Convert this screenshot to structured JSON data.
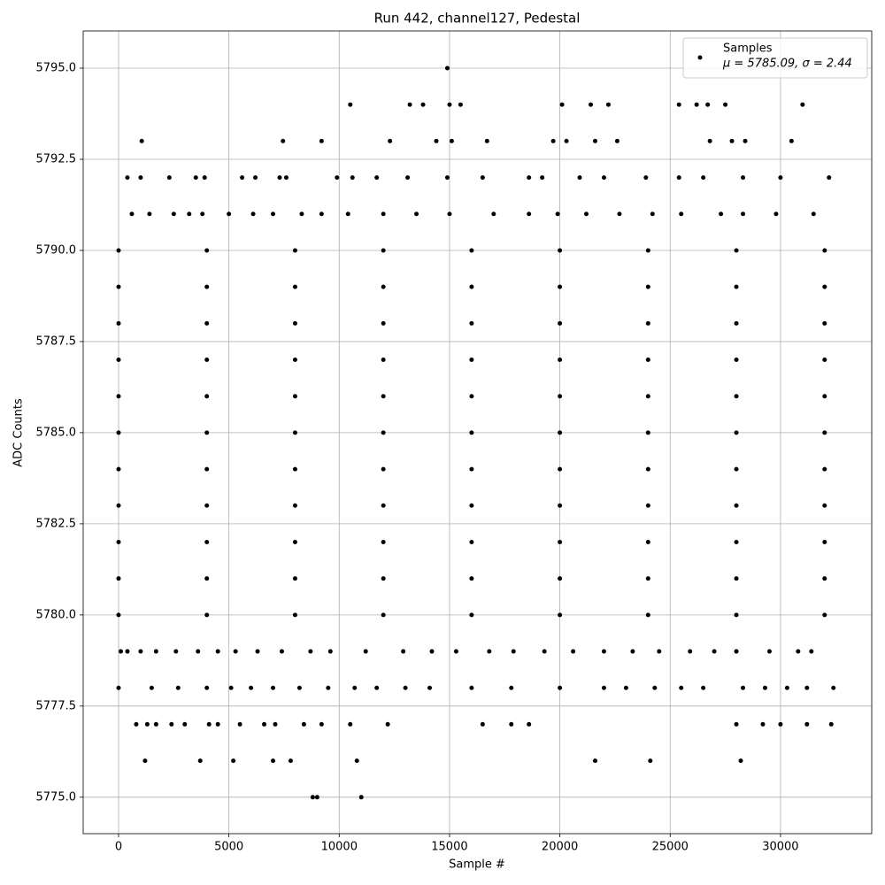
{
  "chart_data": {
    "type": "scatter",
    "title": "Run 442, channel127, Pedestal",
    "x_label": "Sample #",
    "y_label": "ADC Counts",
    "legend_note": "μ = 5785.09, σ = 2.44",
    "legend_position": "upper right",
    "grid": true,
    "xlim": [
      -1604,
      34135
    ],
    "ylim": [
      5774.0,
      5796.02
    ],
    "xticks": [
      0,
      5000,
      10000,
      15000,
      20000,
      25000,
      30000
    ],
    "yticks": [
      {
        "value": 5775,
        "label": "5775.0"
      },
      {
        "value": 5777.5,
        "label": "5777.5"
      },
      {
        "value": 5780,
        "label": "5780.0"
      },
      {
        "value": 5782.5,
        "label": "5782.5"
      },
      {
        "value": 5785,
        "label": "5785.0"
      },
      {
        "value": 5787.5,
        "label": "5787.5"
      },
      {
        "value": 5790,
        "label": "5790.0"
      },
      {
        "value": 5792.5,
        "label": "5792.5"
      },
      {
        "value": 5795,
        "label": "5795.0"
      }
    ],
    "series": [
      {
        "name": "Samples",
        "color": "#000000",
        "x": [
          0,
          4000,
          8000,
          12000,
          16000,
          20000,
          24000,
          28000,
          32000,
          0,
          4000,
          8000,
          12000,
          16000,
          20000,
          24000,
          28000,
          32000,
          0,
          4000,
          8000,
          12000,
          16000,
          20000,
          24000,
          28000,
          32000,
          0,
          4000,
          8000,
          12000,
          16000,
          20000,
          24000,
          28000,
          32000,
          0,
          4000,
          8000,
          12000,
          16000,
          20000,
          24000,
          28000,
          32000,
          0,
          4000,
          8000,
          12000,
          16000,
          20000,
          24000,
          28000,
          32000,
          0,
          4000,
          8000,
          12000,
          16000,
          20000,
          24000,
          28000,
          32000,
          0,
          4000,
          8000,
          12000,
          16000,
          20000,
          24000,
          28000,
          32000,
          0,
          4000,
          8000,
          12000,
          16000,
          20000,
          24000,
          28000,
          32000,
          0,
          4000,
          8000,
          12000,
          16000,
          20000,
          24000,
          28000,
          32000,
          0,
          4000,
          8000,
          12000,
          16000,
          20000,
          24000,
          28000,
          32000,
          14900,
          10500,
          13200,
          13800,
          15000,
          15500,
          20100,
          21400,
          22200,
          25400,
          26200,
          26700,
          27500,
          31000,
          1050,
          7450,
          9200,
          12300,
          14400,
          15100,
          16700,
          19700,
          20300,
          21600,
          22600,
          26800,
          27800,
          28400,
          30500,
          400,
          1000,
          2300,
          3500,
          3900,
          5600,
          6200,
          7300,
          7600,
          9900,
          10600,
          11700,
          13100,
          14900,
          16500,
          18600,
          19200,
          20900,
          22000,
          23900,
          25400,
          26500,
          28300,
          30000,
          32200,
          600,
          1400,
          2500,
          3200,
          3800,
          5000,
          6100,
          7000,
          8300,
          9200,
          10400,
          12000,
          13500,
          15000,
          17000,
          18600,
          19900,
          21200,
          22700,
          24200,
          25500,
          27300,
          28300,
          29800,
          31500,
          100,
          400,
          1000,
          1700,
          2600,
          3600,
          4500,
          5300,
          6300,
          7400,
          8700,
          9600,
          11200,
          12900,
          14200,
          15300,
          16800,
          17900,
          19300,
          20600,
          22000,
          23300,
          24500,
          25900,
          27000,
          28000,
          29500,
          30800,
          31400,
          0,
          1500,
          2700,
          4000,
          5100,
          6000,
          7000,
          8200,
          9500,
          10700,
          11700,
          13000,
          14100,
          16000,
          17800,
          20000,
          22000,
          23000,
          24300,
          25500,
          26500,
          28300,
          29300,
          30300,
          31200,
          32400,
          800,
          1300,
          1700,
          2400,
          3000,
          4100,
          4500,
          5500,
          6600,
          7100,
          8400,
          9200,
          10500,
          12200,
          16500,
          17800,
          18600,
          28000,
          29200,
          30000,
          31200,
          32300,
          1200,
          3700,
          5200,
          7000,
          7800,
          10800,
          21600,
          24100,
          28200,
          8800,
          9000,
          11000
        ],
        "values": [
          5790,
          5790,
          5790,
          5790,
          5790,
          5790,
          5790,
          5790,
          5790,
          5789,
          5789,
          5789,
          5789,
          5789,
          5789,
          5789,
          5789,
          5789,
          5788,
          5788,
          5788,
          5788,
          5788,
          5788,
          5788,
          5788,
          5788,
          5787,
          5787,
          5787,
          5787,
          5787,
          5787,
          5787,
          5787,
          5787,
          5786,
          5786,
          5786,
          5786,
          5786,
          5786,
          5786,
          5786,
          5786,
          5785,
          5785,
          5785,
          5785,
          5785,
          5785,
          5785,
          5785,
          5785,
          5784,
          5784,
          5784,
          5784,
          5784,
          5784,
          5784,
          5784,
          5784,
          5783,
          5783,
          5783,
          5783,
          5783,
          5783,
          5783,
          5783,
          5783,
          5782,
          5782,
          5782,
          5782,
          5782,
          5782,
          5782,
          5782,
          5782,
          5781,
          5781,
          5781,
          5781,
          5781,
          5781,
          5781,
          5781,
          5781,
          5780,
          5780,
          5780,
          5780,
          5780,
          5780,
          5780,
          5780,
          5780,
          5795,
          5794,
          5794,
          5794,
          5794,
          5794,
          5794,
          5794,
          5794,
          5794,
          5794,
          5794,
          5794,
          5794,
          5793,
          5793,
          5793,
          5793,
          5793,
          5793,
          5793,
          5793,
          5793,
          5793,
          5793,
          5793,
          5793,
          5793,
          5793,
          5792,
          5792,
          5792,
          5792,
          5792,
          5792,
          5792,
          5792,
          5792,
          5792,
          5792,
          5792,
          5792,
          5792,
          5792,
          5792,
          5792,
          5792,
          5792,
          5792,
          5792,
          5792,
          5792,
          5792,
          5792,
          5791,
          5791,
          5791,
          5791,
          5791,
          5791,
          5791,
          5791,
          5791,
          5791,
          5791,
          5791,
          5791,
          5791,
          5791,
          5791,
          5791,
          5791,
          5791,
          5791,
          5791,
          5791,
          5791,
          5791,
          5791,
          5779,
          5779,
          5779,
          5779,
          5779,
          5779,
          5779,
          5779,
          5779,
          5779,
          5779,
          5779,
          5779,
          5779,
          5779,
          5779,
          5779,
          5779,
          5779,
          5779,
          5779,
          5779,
          5779,
          5779,
          5779,
          5779,
          5779,
          5779,
          5779,
          5778,
          5778,
          5778,
          5778,
          5778,
          5778,
          5778,
          5778,
          5778,
          5778,
          5778,
          5778,
          5778,
          5778,
          5778,
          5778,
          5778,
          5778,
          5778,
          5778,
          5778,
          5778,
          5778,
          5778,
          5778,
          5778,
          5777,
          5777,
          5777,
          5777,
          5777,
          5777,
          5777,
          5777,
          5777,
          5777,
          5777,
          5777,
          5777,
          5777,
          5777,
          5777,
          5777,
          5777,
          5777,
          5777,
          5777,
          5777,
          5776,
          5776,
          5776,
          5776,
          5776,
          5776,
          5776,
          5776,
          5776,
          5775,
          5775,
          5775
        ]
      }
    ]
  }
}
